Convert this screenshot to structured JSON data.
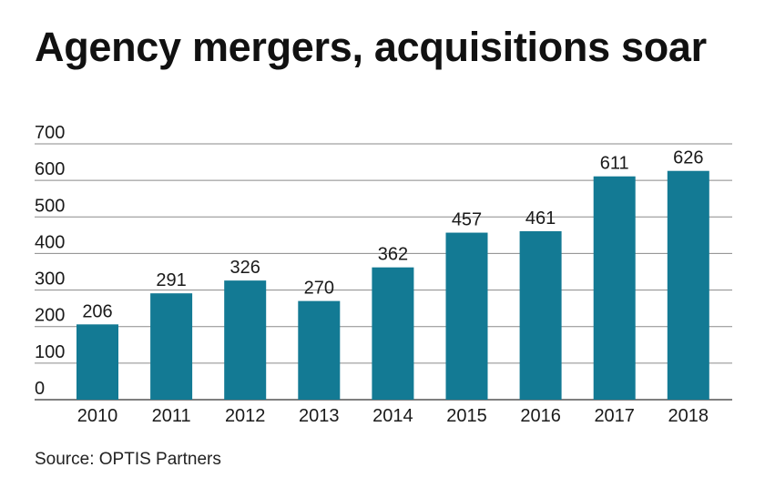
{
  "title": "Agency mergers, acquisitions soar",
  "source": "Source: OPTIS Partners",
  "colors": {
    "bar": "#137a94",
    "gridline": "#8a8a8a",
    "text": "#1a1a1a"
  },
  "chart_data": {
    "type": "bar",
    "title": "Agency mergers, acquisitions soar",
    "xlabel": "",
    "ylabel": "",
    "categories": [
      "2010",
      "2011",
      "2012",
      "2013",
      "2014",
      "2015",
      "2016",
      "2017",
      "2018"
    ],
    "values": [
      206,
      291,
      326,
      270,
      362,
      457,
      461,
      611,
      626
    ],
    "data_labels": [
      "206",
      "291",
      "326",
      "270",
      "362",
      "457",
      "461",
      "611",
      "626"
    ],
    "ylim": [
      0,
      700
    ],
    "yticks": [
      "0",
      "100",
      "200",
      "300",
      "400",
      "500",
      "600",
      "700"
    ],
    "grid": true,
    "legend": "none"
  }
}
